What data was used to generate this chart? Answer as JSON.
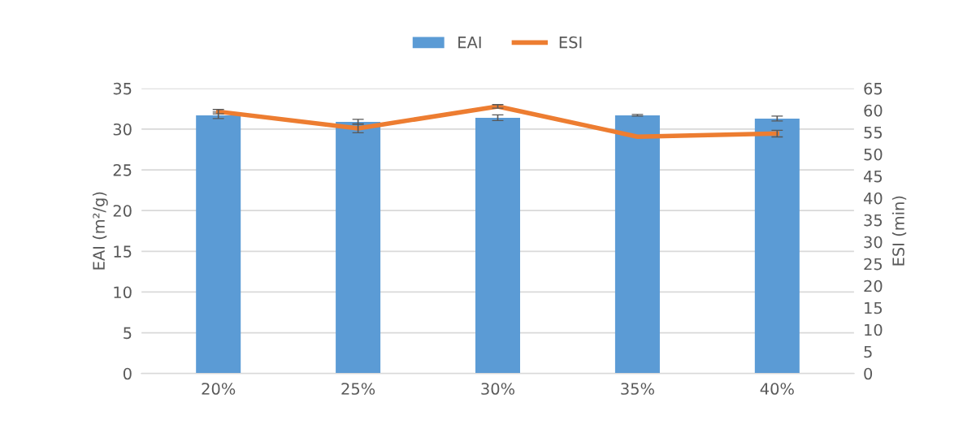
{
  "chart_data": {
    "type": "bar",
    "categories": [
      "20%",
      "25%",
      "30%",
      "35%",
      "40%"
    ],
    "ylabel": "EAI (m²/g)",
    "y2label": "ESI (min)",
    "series": [
      {
        "name": "EAI",
        "color": "#5b9bd5",
        "values": [
          31.7,
          30.9,
          31.4,
          31.7,
          31.3
        ],
        "errors": [
          0.4,
          0.3,
          0.35,
          0.1,
          0.3
        ]
      },
      {
        "name": "ESI",
        "type": "line",
        "axis": "y2",
        "color": "#ed7d31",
        "values": [
          59.7,
          55.9,
          60.9,
          54.0,
          54.7
        ],
        "errors": [
          0.5,
          1,
          0.4,
          null,
          0.75
        ]
      }
    ],
    "ylim": [
      0,
      35
    ],
    "yticks": [
      0,
      5,
      10,
      15,
      20,
      25,
      30,
      35
    ],
    "y2lim": [
      0,
      65
    ],
    "y2ticks": [
      0,
      5,
      10,
      15,
      20,
      25,
      30,
      35,
      40,
      45,
      50,
      55,
      60,
      65
    ],
    "grid": "y",
    "legend": "top",
    "marker": "none",
    "line_style": "solid"
  }
}
